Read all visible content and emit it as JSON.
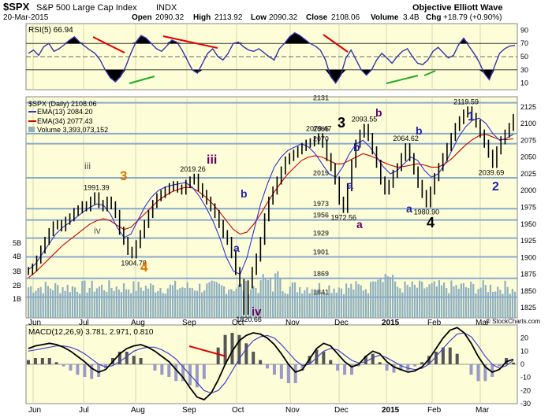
{
  "header": {
    "symbol": "$SPX",
    "name": "S&P 500 Large Cap Index",
    "exchange": "INDX",
    "source": "Objective Elliott Wave",
    "date": "20-Mar-2015",
    "open_label": "Open",
    "open": "2090.32",
    "high_label": "High",
    "high": "2113.92",
    "low_label": "Low",
    "low": "2090.32",
    "close_label": "Close",
    "close": "2108.06",
    "volume_label": "Volume",
    "volume": "3.4B",
    "chg_label": "Chg",
    "chg": "+18.79 (+0.90%)",
    "watermark": "© StockCharts.com"
  },
  "legend": {
    "price": "$SPX (Daily) 2108.06",
    "ema13": "EMA(13) 2084.20",
    "ema34": "EMA(34) 2077.43",
    "volume": "Volume 3,393,073,152",
    "rsi": "RSI(5) 66.94",
    "macd": "MACD(12,26,9) 3.781, 2.971, 0.810"
  },
  "colors": {
    "panel_bg": "#fdfdd8",
    "price_line": "#000000",
    "ema13": "#3333cc",
    "ema34": "#cc0000",
    "volume": "#8fb0c0",
    "support_line": "#88aacc",
    "rsi_line": "#3333aa",
    "rsi_fill": "#000000",
    "macd_line": "#000000",
    "signal_line": "#4444cc",
    "histogram": "#666666",
    "wave_orange": "#e07000",
    "wave_purple": "#660066",
    "wave_blue": "#2222aa",
    "trend_red": "#dd0000",
    "trend_green": "#22aa22"
  },
  "chart_data": [
    {
      "panel": "rsi",
      "type": "line",
      "series": [
        {
          "name": "RSI(5)",
          "values": [
            55,
            60,
            52,
            65,
            70,
            58,
            62,
            68,
            75,
            80,
            72,
            66,
            60,
            55,
            45,
            30,
            18,
            12,
            20,
            35,
            55,
            72,
            82,
            78,
            70,
            62,
            58,
            66,
            75,
            72,
            60,
            45,
            30,
            25,
            40,
            55,
            62,
            50,
            45,
            55,
            70,
            72,
            65,
            60,
            58,
            62,
            56,
            50,
            45,
            62,
            70,
            80,
            86,
            82,
            76,
            70,
            66,
            60,
            45,
            20,
            10,
            22,
            48,
            60,
            45,
            30,
            22,
            30,
            45,
            55,
            48,
            40,
            50,
            58,
            62,
            50,
            40,
            38,
            45,
            58,
            64,
            56,
            48,
            52,
            68,
            78,
            66,
            55,
            42,
            25,
            15,
            35,
            55,
            62,
            66,
            67
          ]
        }
      ],
      "yticks": [
        10,
        30,
        50,
        70,
        90
      ],
      "ylim": [
        0,
        100
      ],
      "levels": [
        30,
        50,
        70
      ]
    },
    {
      "panel": "price",
      "type": "line",
      "x_labels": [
        "Jun",
        "Jul",
        "Aug",
        "Sep",
        "Oct",
        "Nov",
        "Dec",
        "2015",
        "Feb",
        "Mar"
      ],
      "ylim": [
        1810,
        2140
      ],
      "yticks": [
        1825,
        1850,
        1875,
        1900,
        1925,
        1950,
        1975,
        2000,
        2025,
        2050,
        2075,
        2100,
        2125
      ],
      "series": [
        {
          "name": "$SPX (Daily)",
          "values": [
            1880,
            1885,
            1897,
            1912,
            1925,
            1938,
            1948,
            1950,
            1945,
            1955,
            1960,
            1968,
            1972,
            1978,
            1975,
            1985,
            1991.39,
            1980,
            1975,
            1985,
            1978,
            1965,
            1940,
            1925,
            1910,
            1904.78,
            1920,
            1935,
            1950,
            1965,
            1980,
            1990,
            1995,
            2000,
            2005,
            2008,
            2003,
            2000,
            2010,
            2015,
            2019.26,
            2005,
            1995,
            1985,
            1975,
            1965,
            1950,
            1935,
            1925,
            1905,
            1880,
            1862,
            1820.66,
            1860,
            1880,
            1900,
            1925,
            1960,
            1985,
            2000,
            2015,
            2030,
            2045,
            2050,
            2055,
            2060,
            2065,
            2070,
            2072,
            2075,
            2079.47,
            2070,
            2050,
            2035,
            2015,
            1985,
            1972.56,
            2005,
            2040,
            2070,
            2085,
            2093.55,
            2080,
            2060,
            2040,
            2015,
            2000,
            2010,
            2025,
            2035,
            2050,
            2064.62,
            2050,
            2030,
            2010,
            1995,
            1980.9,
            2000,
            2020,
            2035,
            2050,
            2065,
            2080,
            2095,
            2105,
            2115,
            2119.59,
            2110,
            2100,
            2085,
            2070,
            2055,
            2039.69,
            2060,
            2075,
            2085,
            2095,
            2108.06
          ]
        },
        {
          "name": "EMA(13)",
          "values": [
            1882,
            1890,
            1905,
            1920,
            1935,
            1945,
            1952,
            1960,
            1968,
            1975,
            1980,
            1978,
            1965,
            1945,
            1930,
            1935,
            1955,
            1975,
            1990,
            2000,
            2005,
            2008,
            2010,
            2012,
            2005,
            1992,
            1975,
            1955,
            1930,
            1900,
            1880,
            1875,
            1900,
            1940,
            1980,
            2010,
            2035,
            2050,
            2060,
            2065,
            2070,
            2065,
            2055,
            2040,
            2025,
            2020,
            2035,
            2055,
            2070,
            2075,
            2065,
            2050,
            2035,
            2025,
            2030,
            2040,
            2050,
            2045,
            2030,
            2020,
            2025,
            2040,
            2060,
            2080,
            2095,
            2105,
            2108,
            2100,
            2085,
            2075,
            2078,
            2084.2
          ]
        },
        {
          "name": "EMA(34)",
          "values": [
            1870,
            1878,
            1888,
            1898,
            1908,
            1918,
            1926,
            1934,
            1942,
            1950,
            1955,
            1958,
            1955,
            1948,
            1942,
            1945,
            1955,
            1965,
            1975,
            1985,
            1992,
            1998,
            2002,
            2005,
            2004,
            1998,
            1990,
            1980,
            1968,
            1955,
            1942,
            1935,
            1938,
            1950,
            1965,
            1982,
            1998,
            2012,
            2025,
            2035,
            2045,
            2050,
            2052,
            2050,
            2045,
            2040,
            2040,
            2045,
            2050,
            2055,
            2052,
            2048,
            2042,
            2038,
            2035,
            2036,
            2038,
            2040,
            2038,
            2035,
            2035,
            2040,
            2048,
            2058,
            2068,
            2076,
            2082,
            2084,
            2080,
            2076,
            2076,
            2077.43
          ]
        }
      ],
      "support_levels": [
        1841,
        1869,
        1901,
        1929,
        1956,
        1973,
        2019,
        2070,
        2085,
        2131
      ],
      "price_labels": [
        "1991.39",
        "1904.78",
        "2019.26",
        "1820.66",
        "2079.47",
        "1972.56",
        "2093.55",
        "2064.62",
        "1980.90",
        "2119.59",
        "2039.69"
      ],
      "volume_labels": [
        "5B",
        "4B",
        "3B",
        "2B",
        "1B"
      ],
      "wave_labels": [
        {
          "text": "iii",
          "role": "minor"
        },
        {
          "text": "iv",
          "role": "minor"
        },
        {
          "text": "3",
          "role": "primary-orange"
        },
        {
          "text": "4",
          "role": "primary-orange"
        },
        {
          "text": "iii",
          "role": "intermediate"
        },
        {
          "text": "a",
          "role": "minute"
        },
        {
          "text": "b",
          "role": "minute"
        },
        {
          "text": "iv",
          "role": "intermediate"
        },
        {
          "text": "3",
          "role": "major"
        },
        {
          "text": "a",
          "role": "minute"
        },
        {
          "text": "b",
          "role": "minute"
        },
        {
          "text": "a",
          "role": "minute-purple"
        },
        {
          "text": "b",
          "role": "minute-purple"
        },
        {
          "text": "a",
          "role": "minute"
        },
        {
          "text": "b",
          "role": "minute"
        },
        {
          "text": "4",
          "role": "major"
        },
        {
          "text": "1",
          "role": "blue"
        },
        {
          "text": "2",
          "role": "blue"
        }
      ]
    },
    {
      "panel": "macd",
      "type": "line",
      "ylim": [
        -30,
        30
      ],
      "yticks": [
        -30,
        -20,
        -10,
        0,
        10,
        20
      ],
      "series": [
        {
          "name": "MACD",
          "values": [
            12,
            14,
            15,
            16,
            15,
            13,
            10,
            6,
            2,
            -3,
            -6,
            -4,
            2,
            8,
            12,
            14,
            15,
            13,
            10,
            6,
            2,
            -4,
            -10,
            -18,
            -25,
            -27,
            -22,
            -12,
            0,
            10,
            18,
            22,
            24,
            23,
            20,
            15,
            8,
            0,
            -6,
            -4,
            4,
            12,
            16,
            14,
            8,
            2,
            -2,
            0,
            6,
            10,
            8,
            2,
            -2,
            -4,
            -6,
            -5,
            -2,
            4,
            12,
            20,
            26,
            28,
            24,
            16,
            6,
            -2,
            -6,
            -4,
            2,
            3.781
          ]
        },
        {
          "name": "Signal",
          "values": [
            10,
            11,
            12,
            13,
            14,
            14,
            13,
            11,
            8,
            4,
            0,
            -2,
            -1,
            2,
            6,
            10,
            12,
            13,
            13,
            11,
            8,
            4,
            -2,
            -8,
            -14,
            -20,
            -22,
            -20,
            -14,
            -5,
            4,
            12,
            18,
            21,
            22,
            20,
            15,
            9,
            3,
            -1,
            0,
            5,
            10,
            12,
            11,
            7,
            3,
            1,
            2,
            5,
            7,
            5,
            2,
            -1,
            -3,
            -4,
            -3,
            0,
            6,
            12,
            18,
            23,
            24,
            21,
            14,
            6,
            0,
            -3,
            -1,
            2.971
          ]
        }
      ]
    }
  ]
}
